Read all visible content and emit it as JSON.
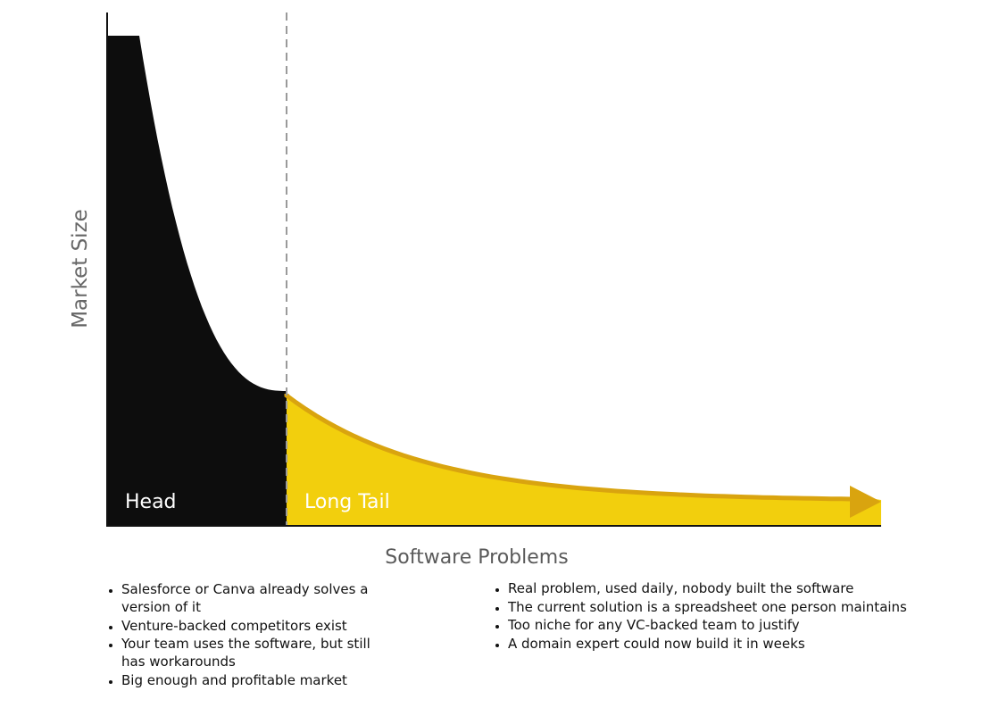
{
  "diagram": {
    "y_axis_label": "Market Size",
    "x_axis_label": "Software Problems",
    "head_label": "Head",
    "tail_label": "Long Tail",
    "colors": {
      "head": "#0d0d0d",
      "tail_fill": "#f2cf0d",
      "tail_edge": "#d9a40f",
      "divider": "#9a9a9a",
      "axis": "#111111"
    }
  },
  "head_notes": [
    "Salesforce or Canva already solves a version of it",
    "Venture-backed competitors exist",
    "Your team uses the software, but still has workarounds",
    "Big enough and profitable market"
  ],
  "tail_notes": [
    "Real problem, used daily, nobody built the software",
    "The current solution is a spreadsheet one person maintains",
    "Too niche for any VC-backed team to justify",
    "A domain expert could now build it in weeks"
  ]
}
